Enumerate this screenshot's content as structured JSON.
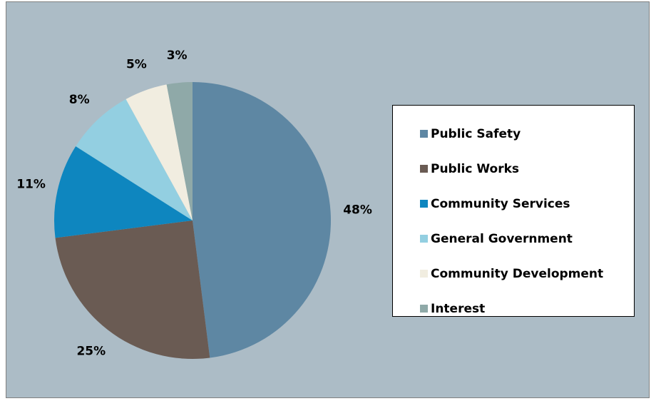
{
  "chart_data": {
    "type": "pie",
    "categories": [
      "Public Safety",
      "Public Works",
      "Community Services",
      "General Government",
      "Community Development",
      "Interest"
    ],
    "values": [
      48,
      25,
      11,
      8,
      5,
      3
    ],
    "labels": [
      "48%",
      "25%",
      "11%",
      "8%",
      "5%",
      "3%"
    ],
    "colors": [
      "#5e87a3",
      "#6a5b53",
      "#0e86bf",
      "#93cfe1",
      "#f1ede0",
      "#8fa9a8"
    ],
    "legend_position": "right",
    "title": ""
  },
  "background_color": "#acbcc6"
}
